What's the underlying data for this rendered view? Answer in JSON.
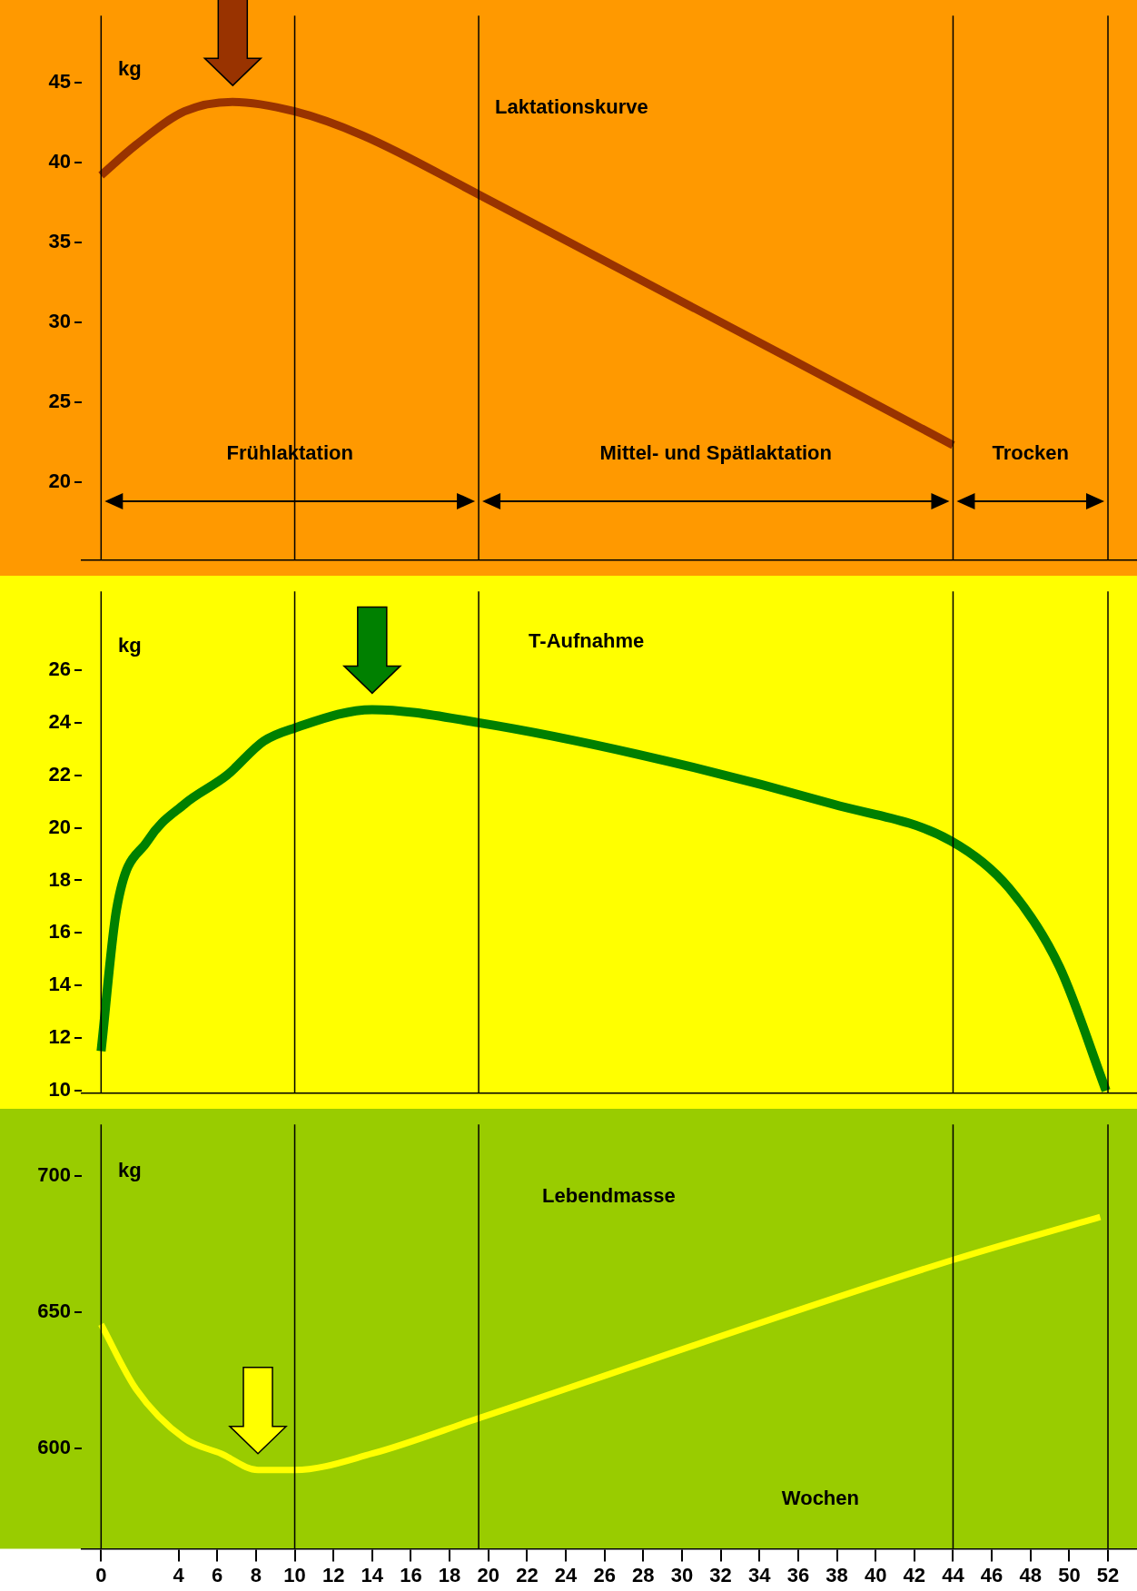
{
  "chart_data": [
    {
      "type": "line",
      "title": "Laktationskurve",
      "ylabel": "kg",
      "x": [
        0,
        1.8,
        4.3,
        6.8,
        10,
        13.5,
        19.5,
        44
      ],
      "values": [
        39.2,
        41.1,
        43.2,
        43.8,
        43.2,
        41.7,
        38.0,
        22.3
      ],
      "color": "#993300",
      "xlim": [
        -1,
        53.5
      ],
      "ylim": [
        15.1,
        49.2
      ],
      "xticks": [
        0,
        4,
        6,
        8,
        10,
        12,
        14,
        16,
        18,
        20,
        22,
        24,
        26,
        28,
        30,
        32,
        34,
        36,
        38,
        40,
        42,
        44,
        46,
        48,
        50,
        52
      ],
      "yticks": [
        20,
        25,
        30,
        35,
        40,
        45
      ],
      "tick_labels": "y",
      "ref_lines": [
        {
          "axis": "x",
          "value": 0
        },
        {
          "axis": "x",
          "value": 10
        },
        {
          "axis": "x",
          "value": 19.5
        },
        {
          "axis": "x",
          "value": 44
        },
        {
          "axis": "x",
          "value": 52
        }
      ],
      "annotations": [
        "Frühlaktation",
        "Mittel- und Spätlaktation",
        "Trocken"
      ]
    },
    {
      "type": "line",
      "title": "T-Aufnahme",
      "ylabel": "kg",
      "x": [
        0,
        0.8,
        2.4,
        4.3,
        6.5,
        8.4,
        10,
        14,
        19.5,
        27.7,
        37.8,
        43.9,
        46.9,
        49.5,
        51.9
      ],
      "values": [
        11.5,
        16.9,
        19.5,
        20.9,
        22.0,
        23.3,
        23.8,
        24.5,
        24.0,
        22.8,
        20.9,
        19.5,
        17.7,
        14.7,
        10.0
      ],
      "color": "#008000",
      "xlim": [
        -1,
        53.5
      ],
      "ylim": [
        9.9,
        29
      ],
      "xticks": [
        0,
        4,
        6,
        8,
        10,
        12,
        14,
        16,
        18,
        20,
        22,
        24,
        26,
        28,
        30,
        32,
        34,
        36,
        38,
        40,
        42,
        44,
        46,
        48,
        50,
        52
      ],
      "yticks": [
        10,
        12,
        14,
        16,
        18,
        20,
        22,
        24,
        26
      ],
      "tick_labels": "y",
      "ref_lines": [
        {
          "axis": "x",
          "value": 0
        },
        {
          "axis": "x",
          "value": 10
        },
        {
          "axis": "x",
          "value": 19.5
        },
        {
          "axis": "x",
          "value": 44
        },
        {
          "axis": "x",
          "value": 52
        }
      ]
    },
    {
      "type": "line",
      "title": "Lebendmasse",
      "ylabel": "kg",
      "xlabel": "Wochen",
      "x": [
        0,
        1.8,
        4.3,
        6.2,
        8.1,
        10,
        14,
        19.5,
        43.9,
        51.6
      ],
      "values": [
        645.5,
        621.8,
        603.6,
        598,
        592,
        592,
        598,
        611,
        669,
        685
      ],
      "color": "#ffff00",
      "xlim": [
        -1,
        53.5
      ],
      "ylim": [
        563,
        719
      ],
      "xticks": [
        0,
        4,
        6,
        8,
        10,
        12,
        14,
        16,
        18,
        20,
        22,
        24,
        26,
        28,
        30,
        32,
        34,
        36,
        38,
        40,
        42,
        44,
        46,
        48,
        50,
        52
      ],
      "yticks": [
        600,
        650,
        700
      ],
      "ref_lines": [
        {
          "axis": "x",
          "value": 0
        },
        {
          "axis": "x",
          "value": 10
        },
        {
          "axis": "x",
          "value": 19.5
        },
        {
          "axis": "x",
          "value": 44
        },
        {
          "axis": "x",
          "value": 52
        }
      ]
    }
  ]
}
